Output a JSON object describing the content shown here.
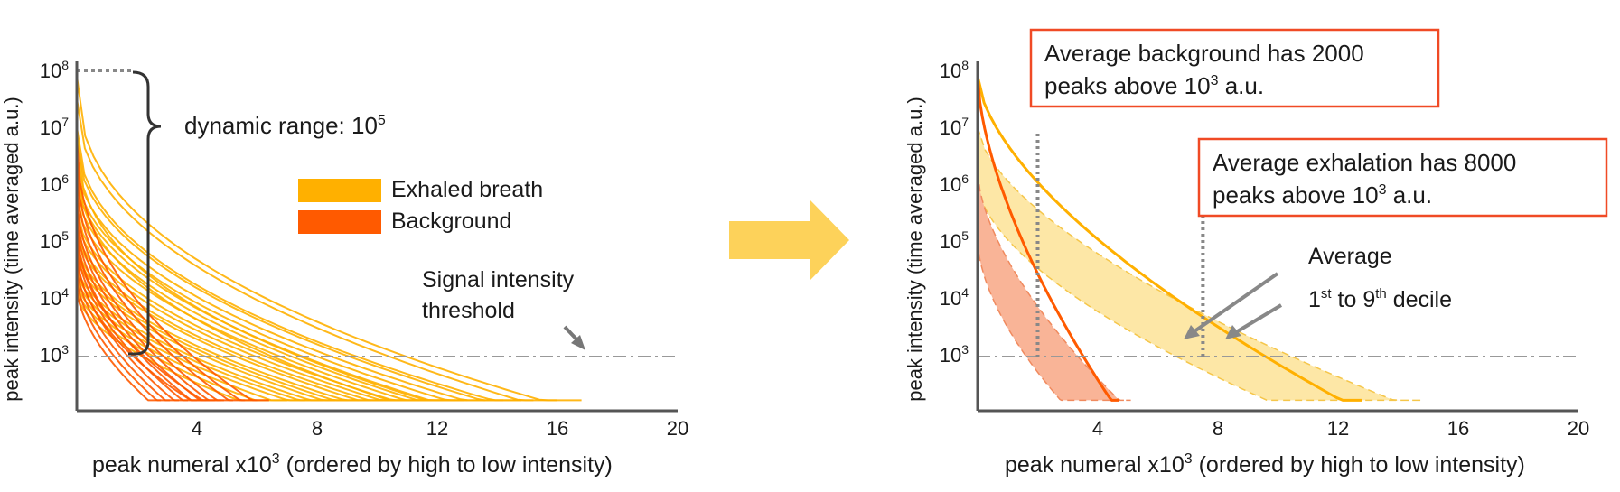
{
  "colors": {
    "exhaled": "#ffb000",
    "background": "#ff5a00",
    "band_exhaled": "#fde7a6",
    "band_background": "#f9b497",
    "arrow": "#fdd25a",
    "callout_border": "#f04a25"
  },
  "arrow_icon": "right-arrow",
  "chart_data": [
    {
      "type": "line",
      "panel": "left",
      "xlabel": "peak numeral x10^3 (ordered by high to low intensity)",
      "xlabel_parts": {
        "a": "peak numeral x10",
        "b": "3",
        "c": " (ordered by high to low intensity)"
      },
      "ylabel": "peak intensity (time averaged a.u.)",
      "x_range": [
        0,
        20
      ],
      "y_range_log10": [
        2.2,
        8
      ],
      "x_ticks": [
        "4",
        "8",
        "12",
        "16",
        "20"
      ],
      "y_ticks": [
        {
          "base": "10",
          "exp": "8"
        },
        {
          "base": "10",
          "exp": "7"
        },
        {
          "base": "10",
          "exp": "6"
        },
        {
          "base": "10",
          "exp": "5"
        },
        {
          "base": "10",
          "exp": "4"
        },
        {
          "base": "10",
          "exp": "3"
        }
      ],
      "legend": [
        {
          "label": "Exhaled breath",
          "color": "#ffb000"
        },
        {
          "label": "Background",
          "color": "#ff5a00"
        }
      ],
      "annotations": {
        "dynamic_range": {
          "text": "dynamic range: 10",
          "exp": "5"
        },
        "threshold_line1": "Signal intensity",
        "threshold_line2": "threshold"
      },
      "threshold_log10": 3,
      "curve_model": "log10(y) = top - (top - 2) * (x / end) ^ exponent",
      "series": [
        {
          "name": "Exhaled breath",
          "color": "#ffb000",
          "curves": [
            {
              "top": 7.9,
              "end": 16.8,
              "exponent": 0.42
            },
            {
              "top": 7.5,
              "end": 16.0,
              "exponent": 0.45
            },
            {
              "top": 7.0,
              "end": 15.2,
              "exponent": 0.44
            },
            {
              "top": 6.8,
              "end": 14.8,
              "exponent": 0.46
            },
            {
              "top": 6.5,
              "end": 14.2,
              "exponent": 0.47
            },
            {
              "top": 6.3,
              "end": 13.6,
              "exponent": 0.48
            },
            {
              "top": 6.2,
              "end": 13.0,
              "exponent": 0.48
            },
            {
              "top": 6.0,
              "end": 12.6,
              "exponent": 0.49
            },
            {
              "top": 5.8,
              "end": 12.2,
              "exponent": 0.5
            },
            {
              "top": 5.6,
              "end": 11.8,
              "exponent": 0.5
            },
            {
              "top": 5.5,
              "end": 11.4,
              "exponent": 0.5
            },
            {
              "top": 5.3,
              "end": 11.0,
              "exponent": 0.51
            },
            {
              "top": 5.2,
              "end": 10.6,
              "exponent": 0.52
            },
            {
              "top": 5.0,
              "end": 10.2,
              "exponent": 0.52
            },
            {
              "top": 4.9,
              "end": 9.8,
              "exponent": 0.53
            },
            {
              "top": 4.8,
              "end": 9.4,
              "exponent": 0.54
            },
            {
              "top": 4.6,
              "end": 9.0,
              "exponent": 0.55
            },
            {
              "top": 4.5,
              "end": 8.6,
              "exponent": 0.56
            },
            {
              "top": 4.4,
              "end": 8.2,
              "exponent": 0.56
            },
            {
              "top": 4.3,
              "end": 7.6,
              "exponent": 0.57
            },
            {
              "top": 4.2,
              "end": 7.0,
              "exponent": 0.58
            },
            {
              "top": 4.1,
              "end": 6.4,
              "exponent": 0.58
            },
            {
              "top": 6.9,
              "end": 12.9,
              "exponent": 0.4
            },
            {
              "top": 6.4,
              "end": 11.6,
              "exponent": 0.43
            }
          ]
        },
        {
          "name": "Background",
          "color": "#ff5a00",
          "curves": [
            {
              "top": 6.8,
              "end": 6.4,
              "exponent": 0.45
            },
            {
              "top": 6.4,
              "end": 6.0,
              "exponent": 0.47
            },
            {
              "top": 6.1,
              "end": 5.6,
              "exponent": 0.49
            },
            {
              "top": 5.8,
              "end": 5.2,
              "exponent": 0.5
            },
            {
              "top": 5.6,
              "end": 4.9,
              "exponent": 0.51
            },
            {
              "top": 5.4,
              "end": 4.6,
              "exponent": 0.52
            },
            {
              "top": 5.2,
              "end": 4.3,
              "exponent": 0.53
            },
            {
              "top": 5.0,
              "end": 4.0,
              "exponent": 0.54
            },
            {
              "top": 4.8,
              "end": 3.7,
              "exponent": 0.55
            },
            {
              "top": 4.6,
              "end": 3.4,
              "exponent": 0.56
            },
            {
              "top": 4.4,
              "end": 3.1,
              "exponent": 0.57
            },
            {
              "top": 4.2,
              "end": 2.8,
              "exponent": 0.58
            },
            {
              "top": 5.3,
              "end": 4.8,
              "exponent": 0.46
            },
            {
              "top": 4.9,
              "end": 4.4,
              "exponent": 0.48
            }
          ]
        }
      ]
    },
    {
      "type": "area",
      "panel": "right",
      "xlabel": "peak numeral x10^3 (ordered by high to low intensity)",
      "xlabel_parts": {
        "a": "peak numeral x10",
        "b": "3",
        "c": " (ordered by high to low intensity)"
      },
      "ylabel": "peak intensity (time averaged a.u.)",
      "x_range": [
        0,
        20
      ],
      "y_range_log10": [
        2.2,
        8
      ],
      "x_ticks": [
        "4",
        "8",
        "12",
        "16",
        "20"
      ],
      "y_ticks": [
        {
          "base": "10",
          "exp": "8"
        },
        {
          "base": "10",
          "exp": "7"
        },
        {
          "base": "10",
          "exp": "6"
        },
        {
          "base": "10",
          "exp": "5"
        },
        {
          "base": "10",
          "exp": "4"
        },
        {
          "base": "10",
          "exp": "3"
        }
      ],
      "threshold_log10": 3,
      "averages": [
        {
          "name": "Average exhalation",
          "color": "#ffb000",
          "top": 7.9,
          "end": 12.8,
          "exponent": 0.62,
          "peaks_above_threshold": 8000
        },
        {
          "name": "Average background",
          "color": "#ff5a00",
          "top": 7.9,
          "end": 4.7,
          "exponent": 0.62,
          "peaks_above_threshold": 2000
        }
      ],
      "decile_bands": [
        {
          "name": "Exhaled breath 1st to 9th decile",
          "color": "#fde7a6",
          "upper": {
            "top": 7.0,
            "end": 14.8,
            "exponent": 0.62
          },
          "lower": {
            "top": 6.0,
            "end": 10.5,
            "exponent": 0.6
          }
        },
        {
          "name": "Background 1st to 9th decile",
          "color": "#f9b497",
          "upper": {
            "top": 6.2,
            "end": 5.1,
            "exponent": 0.62
          },
          "lower": {
            "top": 5.0,
            "end": 3.1,
            "exponent": 0.6
          }
        }
      ],
      "vertical_markers_x": [
        2,
        7.5
      ],
      "annotations": {
        "box1_line1": "Average background has 2000",
        "box1_line2a": "peaks above 10",
        "box1_line2b": "3",
        "box1_line2c": " a.u.",
        "box2_line1": "Average exhalation has 8000",
        "box2_line2a": "peaks above 10",
        "box2_line2b": "3",
        "box2_line2c": " a.u.",
        "average_label": "Average",
        "decile_a": "1",
        "decile_b": "st",
        "decile_c": " to 9",
        "decile_d": "th",
        "decile_e": " decile"
      }
    }
  ]
}
